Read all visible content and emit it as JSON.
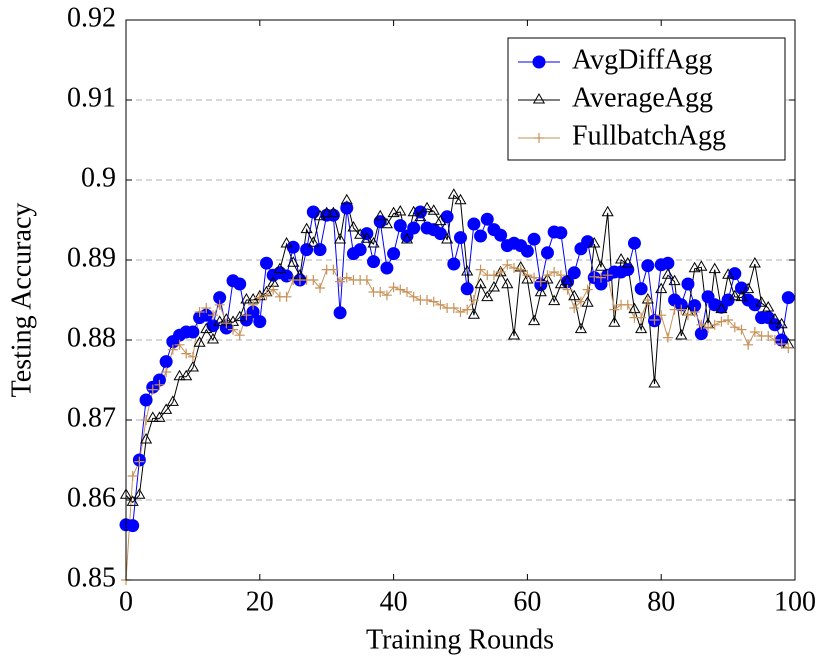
{
  "chart_data": {
    "type": "line",
    "xlabel": "Training Rounds",
    "ylabel": "Testing Accuracy",
    "xlim": [
      0,
      100
    ],
    "ylim": [
      0.85,
      0.92
    ],
    "xticks": [
      0,
      20,
      40,
      60,
      80,
      100
    ],
    "yticks": [
      0.85,
      0.86,
      0.87,
      0.88,
      0.89,
      0.9,
      0.91,
      0.92
    ],
    "grid": true,
    "legend": "upper right",
    "x": [
      0,
      1,
      2,
      3,
      4,
      5,
      6,
      7,
      8,
      9,
      10,
      11,
      12,
      13,
      14,
      15,
      16,
      17,
      18,
      19,
      20,
      21,
      22,
      23,
      24,
      25,
      26,
      27,
      28,
      29,
      30,
      31,
      32,
      33,
      34,
      35,
      36,
      37,
      38,
      39,
      40,
      41,
      42,
      43,
      44,
      45,
      46,
      47,
      48,
      49,
      50,
      51,
      52,
      53,
      54,
      55,
      56,
      57,
      58,
      59,
      60,
      61,
      62,
      63,
      64,
      65,
      66,
      67,
      68,
      69,
      70,
      71,
      72,
      73,
      74,
      75,
      76,
      77,
      78,
      79,
      80,
      81,
      82,
      83,
      84,
      85,
      86,
      87,
      88,
      89,
      90,
      91,
      92,
      93,
      94,
      95,
      96,
      97,
      98,
      99
    ],
    "series": [
      {
        "name": "AvgDiffAgg",
        "color": "#0000ff",
        "marker": "circle",
        "values": [
          0.8569,
          0.8568,
          0.865,
          0.8725,
          0.8741,
          0.875,
          0.8773,
          0.8798,
          0.8806,
          0.881,
          0.881,
          0.8828,
          0.8831,
          0.8818,
          0.8853,
          0.8815,
          0.8874,
          0.887,
          0.8825,
          0.8835,
          0.8823,
          0.8896,
          0.8881,
          0.8884,
          0.888,
          0.8916,
          0.8875,
          0.8913,
          0.896,
          0.8913,
          0.8956,
          0.8956,
          0.8834,
          0.8965,
          0.8908,
          0.8913,
          0.8933,
          0.8898,
          0.8948,
          0.889,
          0.8908,
          0.8943,
          0.893,
          0.894,
          0.896,
          0.894,
          0.8938,
          0.8933,
          0.8954,
          0.8895,
          0.8928,
          0.8864,
          0.8945,
          0.893,
          0.8951,
          0.8938,
          0.8931,
          0.8918,
          0.8921,
          0.8918,
          0.8911,
          0.8926,
          0.8869,
          0.8909,
          0.8935,
          0.8934,
          0.8873,
          0.8884,
          0.8914,
          0.8923,
          0.8878,
          0.887,
          0.8881,
          0.8885,
          0.8885,
          0.8888,
          0.8921,
          0.8864,
          0.8893,
          0.8824,
          0.8894,
          0.8896,
          0.885,
          0.8844,
          0.887,
          0.8843,
          0.8808,
          0.8854,
          0.8844,
          0.8841,
          0.885,
          0.8883,
          0.8865,
          0.885,
          0.8844,
          0.8828,
          0.8828,
          0.8819,
          0.88,
          0.8853
        ]
      },
      {
        "name": "AverageAgg",
        "color": "#000000",
        "marker": "triangle",
        "values": [
          0.8606,
          0.8597,
          0.8606,
          0.8675,
          0.8702,
          0.8702,
          0.8712,
          0.8722,
          0.8754,
          0.8754,
          0.8765,
          0.8796,
          0.8813,
          0.88,
          0.8822,
          0.8825,
          0.8822,
          0.8828,
          0.885,
          0.885,
          0.8854,
          0.8859,
          0.8871,
          0.8888,
          0.892,
          0.8896,
          0.888,
          0.8938,
          0.8921,
          0.8954,
          0.8958,
          0.8958,
          0.8925,
          0.8974,
          0.894,
          0.8931,
          0.8926,
          0.892,
          0.8954,
          0.8944,
          0.8958,
          0.896,
          0.8925,
          0.8959,
          0.8953,
          0.8964,
          0.8961,
          0.8948,
          0.8925,
          0.8981,
          0.8974,
          0.8885,
          0.8831,
          0.8869,
          0.8853,
          0.8865,
          0.8884,
          0.8869,
          0.8805,
          0.889,
          0.8875,
          0.8823,
          0.8859,
          0.8875,
          0.8848,
          0.8869,
          0.8873,
          0.8854,
          0.8813,
          0.8846,
          0.892,
          0.8891,
          0.8959,
          0.8821,
          0.89,
          0.8895,
          0.8838,
          0.8813,
          0.885,
          0.8745,
          0.8863,
          0.8881,
          0.8873,
          0.8805,
          0.8835,
          0.8889,
          0.8891,
          0.8819,
          0.8888,
          0.8838,
          0.8881,
          0.8854,
          0.8853,
          0.8863,
          0.8895,
          0.8846,
          0.884,
          0.8825,
          0.8819,
          0.8794
        ]
      },
      {
        "name": "FullbatchAgg",
        "color": "#c8925a",
        "marker": "plus",
        "values": [
          0.85,
          0.863,
          0.8648,
          0.87,
          0.8738,
          0.8744,
          0.876,
          0.8788,
          0.8794,
          0.8783,
          0.8779,
          0.8835,
          0.884,
          0.8831,
          0.8844,
          0.8821,
          0.8813,
          0.8806,
          0.8831,
          0.8844,
          0.8853,
          0.8856,
          0.8863,
          0.8854,
          0.8854,
          0.8875,
          0.8875,
          0.8875,
          0.8875,
          0.8865,
          0.8888,
          0.8888,
          0.8873,
          0.8878,
          0.8875,
          0.8875,
          0.8875,
          0.886,
          0.886,
          0.8856,
          0.8866,
          0.8863,
          0.886,
          0.8854,
          0.885,
          0.885,
          0.8848,
          0.8844,
          0.884,
          0.884,
          0.8835,
          0.8838,
          0.885,
          0.8888,
          0.8881,
          0.8881,
          0.8885,
          0.8894,
          0.889,
          0.8888,
          0.8881,
          0.8878,
          0.8873,
          0.8881,
          0.8885,
          0.8881,
          0.8863,
          0.884,
          0.8848,
          0.8863,
          0.8879,
          0.8878,
          0.8881,
          0.8838,
          0.8844,
          0.8844,
          0.8828,
          0.8828,
          0.885,
          0.8825,
          0.8831,
          0.8803,
          0.8838,
          0.8838,
          0.8831,
          0.8835,
          0.8819,
          0.8815,
          0.8819,
          0.8823,
          0.8825,
          0.8816,
          0.8813,
          0.8794,
          0.881,
          0.8805,
          0.8805,
          0.88,
          0.8795,
          0.879
        ]
      }
    ]
  }
}
